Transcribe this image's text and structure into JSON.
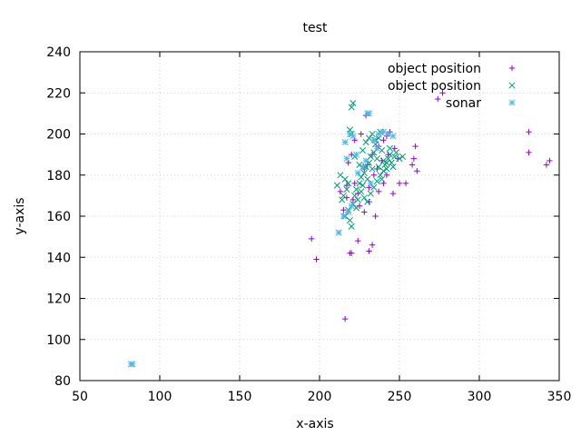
{
  "chart_data": {
    "type": "scatter",
    "title": "test",
    "xlabel": "x-axis",
    "ylabel": "y-axis",
    "xlim": [
      50,
      350
    ],
    "ylim": [
      80,
      240
    ],
    "xticks": [
      50,
      100,
      150,
      200,
      250,
      300,
      350
    ],
    "yticks": [
      80,
      100,
      120,
      140,
      160,
      180,
      200,
      220,
      240
    ],
    "grid": true,
    "legend_position": "top-right",
    "series": [
      {
        "name": "object position",
        "color": "#9400d3",
        "marker": "plus",
        "points": [
          [
            195,
            149
          ],
          [
            198,
            139
          ],
          [
            216,
            110
          ],
          [
            219,
            142
          ],
          [
            220,
            142
          ],
          [
            224,
            148
          ],
          [
            231,
            143
          ],
          [
            233,
            146
          ],
          [
            217,
            169
          ],
          [
            213,
            172
          ],
          [
            222,
            176
          ],
          [
            228,
            183
          ],
          [
            230,
            185
          ],
          [
            233,
            190
          ],
          [
            237,
            194
          ],
          [
            240,
            197
          ],
          [
            242,
            199
          ],
          [
            244,
            201
          ],
          [
            246,
            171
          ],
          [
            250,
            176
          ],
          [
            254,
            176
          ],
          [
            258,
            185
          ],
          [
            259,
            188
          ],
          [
            260,
            194
          ],
          [
            261,
            182
          ],
          [
            274,
            217
          ],
          [
            277,
            220
          ],
          [
            331,
            201
          ],
          [
            331,
            191
          ],
          [
            342,
            185
          ],
          [
            344,
            187
          ],
          [
            225,
            165
          ],
          [
            228,
            162
          ],
          [
            231,
            167
          ],
          [
            235,
            160
          ],
          [
            237,
            172
          ],
          [
            240,
            176
          ],
          [
            242,
            180
          ],
          [
            218,
            186
          ],
          [
            220,
            190
          ],
          [
            222,
            197
          ],
          [
            226,
            200
          ],
          [
            229,
            209
          ],
          [
            231,
            174
          ],
          [
            234,
            180
          ],
          [
            236,
            183
          ],
          [
            239,
            187
          ],
          [
            243,
            190
          ],
          [
            247,
            193
          ],
          [
            249,
            188
          ],
          [
            215,
            163
          ],
          [
            217,
            175
          ],
          [
            221,
            168
          ],
          [
            224,
            171
          ]
        ]
      },
      {
        "name": "object position",
        "color": "#009e73",
        "marker": "cross",
        "points": [
          [
            212,
            152
          ],
          [
            216,
            160
          ],
          [
            218,
            163
          ],
          [
            219,
            158
          ],
          [
            220,
            155
          ],
          [
            221,
            166
          ],
          [
            222,
            170
          ],
          [
            223,
            173
          ],
          [
            224,
            168
          ],
          [
            225,
            176
          ],
          [
            226,
            179
          ],
          [
            227,
            175
          ],
          [
            228,
            181
          ],
          [
            229,
            184
          ],
          [
            230,
            178
          ],
          [
            231,
            186
          ],
          [
            232,
            189
          ],
          [
            233,
            183
          ],
          [
            234,
            191
          ],
          [
            235,
            195
          ],
          [
            236,
            188
          ],
          [
            237,
            198
          ],
          [
            238,
            201
          ],
          [
            239,
            192
          ],
          [
            240,
            187
          ],
          [
            241,
            185
          ],
          [
            242,
            183
          ],
          [
            243,
            188
          ],
          [
            244,
            190
          ],
          [
            245,
            186
          ],
          [
            246,
            184
          ],
          [
            247,
            189
          ],
          [
            248,
            191
          ],
          [
            250,
            188
          ],
          [
            252,
            189
          ],
          [
            219,
            202
          ],
          [
            220,
            200
          ],
          [
            221,
            215
          ],
          [
            220,
            213
          ],
          [
            222,
            189
          ],
          [
            225,
            185
          ],
          [
            227,
            192
          ],
          [
            229,
            196
          ],
          [
            231,
            198
          ],
          [
            233,
            200
          ],
          [
            235,
            197
          ],
          [
            215,
            170
          ],
          [
            217,
            173
          ],
          [
            218,
            176
          ],
          [
            214,
            168
          ],
          [
            216,
            178
          ],
          [
            230,
            167
          ],
          [
            232,
            171
          ],
          [
            234,
            174
          ],
          [
            236,
            177
          ],
          [
            238,
            180
          ],
          [
            240,
            182
          ],
          [
            223,
            164
          ],
          [
            226,
            172
          ],
          [
            228,
            169
          ],
          [
            211,
            175
          ],
          [
            213,
            180
          ],
          [
            237,
            184
          ],
          [
            239,
            178
          ],
          [
            242,
            186
          ],
          [
            244,
            193
          ]
        ]
      },
      {
        "name": "sonar",
        "color": "#56b4e9",
        "marker": "star",
        "points": [
          [
            82,
            88
          ],
          [
            83,
            88
          ],
          [
            212,
            152
          ],
          [
            215,
            160
          ],
          [
            218,
            162
          ],
          [
            220,
            165
          ],
          [
            219,
            200
          ],
          [
            221,
            199
          ],
          [
            223,
            190
          ],
          [
            230,
            210
          ],
          [
            231,
            210
          ],
          [
            234,
            197
          ],
          [
            237,
            200
          ],
          [
            240,
            201
          ],
          [
            243,
            200
          ],
          [
            246,
            199
          ],
          [
            236,
            193
          ],
          [
            224,
            181
          ],
          [
            227,
            184
          ],
          [
            229,
            187
          ],
          [
            232,
            176
          ],
          [
            216,
            196
          ],
          [
            217,
            188
          ]
        ]
      }
    ]
  }
}
